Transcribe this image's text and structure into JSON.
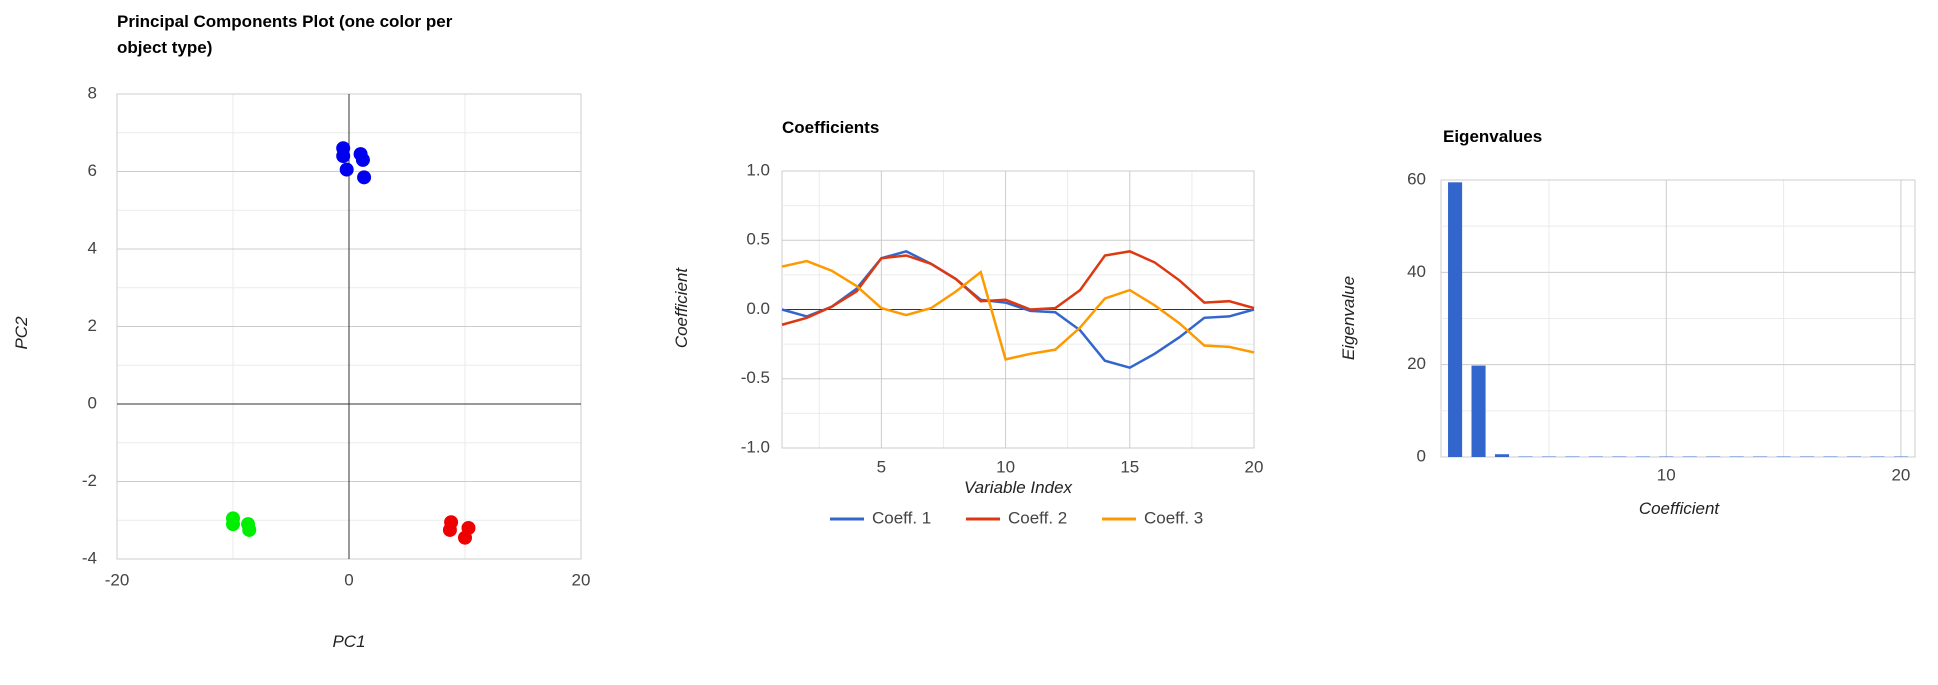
{
  "chart_data": [
    {
      "type": "scatter",
      "title": "Principal Components Plot (one color per object type)",
      "xlabel": "PC1",
      "ylabel": "PC2",
      "xlim": [
        -20,
        20
      ],
      "xticks": [
        -20,
        0,
        20
      ],
      "ylim": [
        -4,
        8
      ],
      "yticks": [
        -4,
        -2,
        0,
        2,
        4,
        6,
        8
      ],
      "grid": true,
      "series": [
        {
          "color": "#0000ee",
          "x": [
            -0.5,
            -0.5,
            1.0,
            1.2,
            -0.2,
            1.3
          ],
          "y": [
            6.6,
            6.4,
            6.45,
            6.3,
            6.05,
            5.85
          ]
        },
        {
          "color": "#00ee00",
          "x": [
            -10,
            -10,
            -8.7,
            -8.6
          ],
          "y": [
            -2.95,
            -3.1,
            -3.1,
            -3.25
          ]
        },
        {
          "color": "#ee0000",
          "x": [
            8.8,
            8.7,
            10.3,
            10.0
          ],
          "y": [
            -3.05,
            -3.25,
            -3.2,
            -3.45
          ]
        }
      ]
    },
    {
      "type": "line",
      "title": "Coefficients",
      "xlabel": "Variable Index",
      "ylabel": "Coefficient",
      "xlim": [
        1,
        20
      ],
      "xticks": [
        5,
        10,
        15,
        20
      ],
      "ylim": [
        -1,
        1
      ],
      "yticks": [
        {
          "value": -1,
          "label": "-1.0"
        },
        -0.5,
        {
          "value": 0,
          "label": "0.0"
        },
        0.5,
        {
          "value": 1,
          "label": "1.0"
        }
      ],
      "grid": true,
      "legend": "bottom",
      "x": [
        1,
        2,
        3,
        4,
        5,
        6,
        7,
        8,
        9,
        10,
        11,
        12,
        13,
        14,
        15,
        16,
        17,
        18,
        19,
        20
      ],
      "series": [
        {
          "name": "Coeff. 1",
          "color": "#3366cc",
          "values": [
            0.0,
            -0.05,
            0.02,
            0.15,
            0.37,
            0.42,
            0.33,
            0.22,
            0.07,
            0.05,
            -0.01,
            -0.02,
            -0.15,
            -0.37,
            -0.42,
            -0.32,
            -0.2,
            -0.06,
            -0.05,
            0.0
          ]
        },
        {
          "name": "Coeff. 2",
          "color": "#dc3912",
          "values": [
            -0.11,
            -0.06,
            0.02,
            0.13,
            0.37,
            0.39,
            0.33,
            0.22,
            0.06,
            0.07,
            0.0,
            0.01,
            0.14,
            0.39,
            0.42,
            0.34,
            0.21,
            0.05,
            0.06,
            0.01
          ]
        },
        {
          "name": "Coeff. 3",
          "color": "#ff9900",
          "values": [
            0.31,
            0.35,
            0.28,
            0.17,
            0.01,
            -0.04,
            0.01,
            0.13,
            0.27,
            -0.36,
            -0.32,
            -0.29,
            -0.13,
            0.08,
            0.14,
            0.03,
            -0.1,
            -0.26,
            -0.27,
            -0.31
          ]
        }
      ]
    },
    {
      "type": "bar",
      "title": "Eigenvalues",
      "xlabel": "Coefficient",
      "ylabel": "Eigenvalue",
      "xlim": [
        0.4,
        20.6
      ],
      "xticks": [
        10,
        20
      ],
      "ylim": [
        0,
        60
      ],
      "yticks": [
        0,
        20,
        40,
        60
      ],
      "grid": true,
      "color": "#3366cc",
      "x": [
        1,
        2,
        3,
        4,
        5,
        6,
        7,
        8,
        9,
        10,
        11,
        12,
        13,
        14,
        15,
        16,
        17,
        18,
        19,
        20
      ],
      "values": [
        59.5,
        19.8,
        0.6,
        0.1,
        0.1,
        0.1,
        0.1,
        0.1,
        0.1,
        0.1,
        0.1,
        0.1,
        0.1,
        0.1,
        0.1,
        0.1,
        0.1,
        0.1,
        0.1,
        0.1
      ]
    }
  ]
}
